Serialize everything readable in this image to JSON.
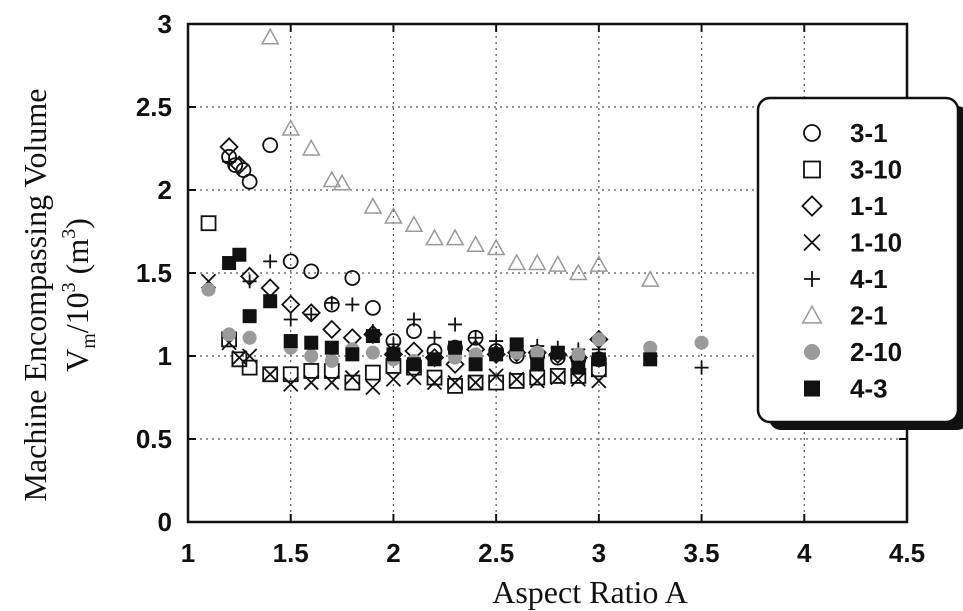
{
  "chart_data": {
    "type": "scatter",
    "xlabel": "Aspect Ratio A",
    "ylabel": {
      "line1": "Machine Encompassing Volume",
      "line2_main": "V",
      "line2_sub": "m",
      "line2_mid": "/10",
      "line2_sup": "3",
      "line2_unit": " (m",
      "line2_unit_sup": "3",
      "line2_end": ")"
    },
    "xlim": [
      1,
      4.5
    ],
    "ylim": [
      0,
      3
    ],
    "xticks": [
      "1",
      "1.5",
      "2",
      "2.5",
      "3",
      "3.5",
      "4",
      "4.5"
    ],
    "yticks": [
      "0",
      "0.5",
      "1",
      "1.5",
      "2",
      "2.5",
      "3"
    ],
    "grid": true,
    "legend_position": "right",
    "series": [
      {
        "name": "3-1",
        "marker": "circle-open",
        "color": "#111111",
        "points": [
          [
            1.2,
            2.2
          ],
          [
            1.23,
            2.15
          ],
          [
            1.27,
            2.12
          ],
          [
            1.3,
            2.05
          ],
          [
            1.4,
            2.27
          ],
          [
            1.5,
            1.57
          ],
          [
            1.6,
            1.51
          ],
          [
            1.7,
            1.31
          ],
          [
            1.8,
            1.47
          ],
          [
            1.9,
            1.29
          ],
          [
            2.0,
            1.09
          ],
          [
            2.1,
            1.15
          ],
          [
            2.2,
            1.03
          ],
          [
            2.3,
            1.05
          ],
          [
            2.4,
            1.11
          ],
          [
            2.5,
            1.03
          ],
          [
            2.6,
            1.0
          ],
          [
            2.7,
            1.0
          ],
          [
            2.8,
            0.99
          ],
          [
            2.9,
            0.98
          ],
          [
            3.0,
            0.98
          ]
        ]
      },
      {
        "name": "3-10",
        "marker": "square-open",
        "color": "#111111",
        "points": [
          [
            1.1,
            1.8
          ],
          [
            1.2,
            1.1
          ],
          [
            1.25,
            0.98
          ],
          [
            1.3,
            0.93
          ],
          [
            1.4,
            0.89
          ],
          [
            1.5,
            0.89
          ],
          [
            1.6,
            0.91
          ],
          [
            1.7,
            0.91
          ],
          [
            1.8,
            0.84
          ],
          [
            1.9,
            0.9
          ],
          [
            2.0,
            0.94
          ],
          [
            2.1,
            0.93
          ],
          [
            2.2,
            0.87
          ],
          [
            2.3,
            0.82
          ],
          [
            2.4,
            0.84
          ],
          [
            2.5,
            0.84
          ],
          [
            2.6,
            0.85
          ],
          [
            2.7,
            0.87
          ],
          [
            2.8,
            0.88
          ],
          [
            2.9,
            0.88
          ],
          [
            3.0,
            0.92
          ]
        ]
      },
      {
        "name": "1-1",
        "marker": "diamond-open",
        "color": "#111111",
        "points": [
          [
            1.2,
            2.26
          ],
          [
            1.25,
            2.15
          ],
          [
            1.3,
            1.48
          ],
          [
            1.4,
            1.41
          ],
          [
            1.5,
            1.31
          ],
          [
            1.6,
            1.26
          ],
          [
            1.7,
            1.16
          ],
          [
            1.8,
            1.11
          ],
          [
            1.9,
            1.13
          ],
          [
            2.0,
            1.01
          ],
          [
            2.1,
            1.03
          ],
          [
            2.2,
            0.99
          ],
          [
            2.3,
            0.95
          ],
          [
            2.4,
            1.04
          ],
          [
            2.5,
            1.01
          ],
          [
            2.6,
            1.02
          ],
          [
            2.7,
            1.02
          ],
          [
            2.8,
            1.01
          ],
          [
            2.9,
            0.99
          ],
          [
            3.0,
            1.1
          ]
        ]
      },
      {
        "name": "1-10",
        "marker": "x",
        "color": "#111111",
        "points": [
          [
            1.1,
            1.45
          ],
          [
            1.2,
            1.08
          ],
          [
            1.25,
            0.99
          ],
          [
            1.3,
            1.0
          ],
          [
            1.4,
            0.89
          ],
          [
            1.5,
            0.83
          ],
          [
            1.6,
            0.84
          ],
          [
            1.7,
            0.84
          ],
          [
            1.8,
            0.87
          ],
          [
            1.9,
            0.81
          ],
          [
            2.0,
            0.86
          ],
          [
            2.1,
            0.87
          ],
          [
            2.2,
            0.84
          ],
          [
            2.3,
            0.84
          ],
          [
            2.4,
            0.84
          ],
          [
            2.5,
            0.88
          ],
          [
            2.6,
            0.86
          ],
          [
            2.7,
            0.85
          ],
          [
            2.8,
            0.87
          ],
          [
            2.9,
            0.86
          ],
          [
            3.0,
            0.85
          ]
        ]
      },
      {
        "name": "4-1",
        "marker": "plus",
        "color": "#111111",
        "points": [
          [
            1.2,
            2.17
          ],
          [
            1.3,
            1.45
          ],
          [
            1.4,
            1.57
          ],
          [
            1.5,
            1.22
          ],
          [
            1.6,
            1.25
          ],
          [
            1.7,
            1.32
          ],
          [
            1.8,
            1.31
          ],
          [
            1.9,
            1.15
          ],
          [
            2.0,
            1.07
          ],
          [
            2.1,
            1.22
          ],
          [
            2.2,
            1.11
          ],
          [
            2.3,
            1.19
          ],
          [
            2.4,
            1.11
          ],
          [
            2.5,
            1.09
          ],
          [
            2.6,
            1.06
          ],
          [
            2.7,
            1.06
          ],
          [
            2.8,
            1.05
          ],
          [
            2.9,
            1.04
          ],
          [
            3.0,
            1.04
          ],
          [
            3.25,
            1.0
          ],
          [
            3.5,
            0.93
          ]
        ]
      },
      {
        "name": "2-1",
        "marker": "triangle-open",
        "color": "#999999",
        "points": [
          [
            1.4,
            2.92
          ],
          [
            1.5,
            2.37
          ],
          [
            1.6,
            2.25
          ],
          [
            1.7,
            2.06
          ],
          [
            1.75,
            2.04
          ],
          [
            1.9,
            1.9
          ],
          [
            2.0,
            1.84
          ],
          [
            2.1,
            1.79
          ],
          [
            2.2,
            1.71
          ],
          [
            2.3,
            1.71
          ],
          [
            2.4,
            1.67
          ],
          [
            2.5,
            1.65
          ],
          [
            2.6,
            1.56
          ],
          [
            2.7,
            1.56
          ],
          [
            2.8,
            1.55
          ],
          [
            2.9,
            1.5
          ],
          [
            3.0,
            1.55
          ],
          [
            3.25,
            1.46
          ]
        ]
      },
      {
        "name": "2-10",
        "marker": "circle-filled",
        "color": "#9a9a9a",
        "points": [
          [
            1.1,
            1.4
          ],
          [
            1.2,
            1.13
          ],
          [
            1.3,
            1.11
          ],
          [
            1.5,
            1.05
          ],
          [
            1.6,
            1.0
          ],
          [
            1.7,
            0.97
          ],
          [
            1.8,
            1.04
          ],
          [
            1.9,
            1.02
          ],
          [
            2.0,
            0.98
          ],
          [
            2.1,
            0.97
          ],
          [
            2.2,
            0.98
          ],
          [
            2.3,
            0.99
          ],
          [
            2.4,
            1.01
          ],
          [
            2.5,
            1.01
          ],
          [
            2.6,
            1.02
          ],
          [
            2.7,
            1.02
          ],
          [
            2.8,
            1.02
          ],
          [
            2.9,
            1.01
          ],
          [
            3.0,
            1.1
          ],
          [
            3.25,
            1.05
          ],
          [
            3.5,
            1.08
          ]
        ]
      },
      {
        "name": "4-3",
        "marker": "square-filled",
        "color": "#111111",
        "points": [
          [
            1.2,
            1.56
          ],
          [
            1.25,
            1.61
          ],
          [
            1.3,
            1.24
          ],
          [
            1.4,
            1.33
          ],
          [
            1.5,
            1.09
          ],
          [
            1.6,
            1.08
          ],
          [
            1.7,
            1.05
          ],
          [
            1.8,
            1.01
          ],
          [
            1.9,
            1.12
          ],
          [
            2.0,
            1.01
          ],
          [
            2.1,
            0.95
          ],
          [
            2.2,
            0.98
          ],
          [
            2.3,
            1.05
          ],
          [
            2.4,
            0.95
          ],
          [
            2.5,
            1.01
          ],
          [
            2.6,
            1.07
          ],
          [
            2.7,
            0.95
          ],
          [
            2.8,
            1.02
          ],
          [
            2.9,
            0.93
          ],
          [
            3.0,
            0.98
          ],
          [
            3.25,
            0.98
          ]
        ]
      }
    ]
  }
}
